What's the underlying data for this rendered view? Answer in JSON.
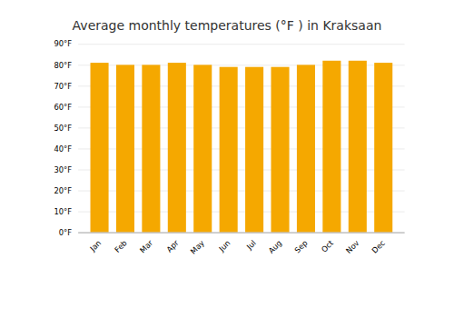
{
  "chart_data": {
    "type": "bar",
    "title": "Average monthly temperatures (°F ) in Kraksaan",
    "categories": [
      "Jan",
      "Feb",
      "Mar",
      "Apr",
      "May",
      "Jun",
      "Jul",
      "Aug",
      "Sep",
      "Oct",
      "Nov",
      "Dec"
    ],
    "values": [
      81,
      80,
      80,
      81,
      80,
      79,
      79,
      79,
      80,
      82,
      82,
      81
    ],
    "color": "#F5A800",
    "ylim": [
      0,
      90
    ],
    "yticks": [
      {
        "value": 0,
        "label": "0°F"
      },
      {
        "value": 10,
        "label": "10°F"
      },
      {
        "value": 20,
        "label": "20°F"
      },
      {
        "value": 30,
        "label": "30°F"
      },
      {
        "value": 40,
        "label": "40°F"
      },
      {
        "value": 50,
        "label": "50°F"
      },
      {
        "value": 60,
        "label": "60°F"
      },
      {
        "value": 70,
        "label": "70°F"
      },
      {
        "value": 80,
        "label": "80°F"
      },
      {
        "value": 90,
        "label": "90°F"
      }
    ],
    "grid": true
  }
}
